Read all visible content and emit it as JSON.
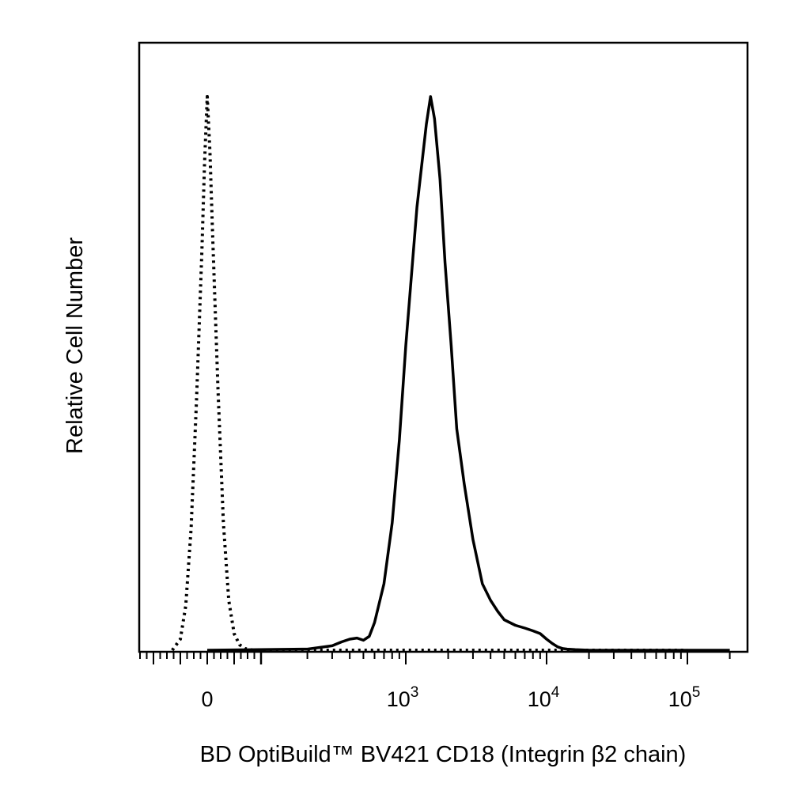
{
  "chart_data": {
    "type": "line",
    "xlabel": "BD OptiBuild™ BV421 CD18 (Integrin β2 chain)",
    "ylabel": "Relative Cell Number",
    "x_scale": "biexponential",
    "xlim": [
      -200,
      200000
    ],
    "ylim": [
      0,
      100
    ],
    "grid": false,
    "legend": "none",
    "x_tick_labels": [
      {
        "value": 0,
        "base": "0",
        "exp": ""
      },
      {
        "value": 1000,
        "base": "10",
        "exp": "3"
      },
      {
        "value": 10000,
        "base": "10",
        "exp": "4"
      },
      {
        "value": 100000,
        "base": "10",
        "exp": "5"
      }
    ],
    "series": [
      {
        "style": "dotted",
        "color": "#000000",
        "x": [
          -130,
          -100,
          -80,
          -60,
          -40,
          -20,
          -10,
          0,
          10,
          20,
          40,
          60,
          80,
          100,
          120,
          140,
          170,
          200,
          300,
          1000,
          10000,
          100000
        ],
        "y": [
          0,
          2,
          8,
          22,
          45,
          72,
          88,
          100,
          90,
          75,
          47,
          23,
          9,
          3,
          1,
          0.3,
          0,
          0,
          0,
          0,
          0,
          0
        ]
      },
      {
        "style": "solid",
        "color": "#000000",
        "x": [
          0,
          200,
          300,
          350,
          400,
          450,
          500,
          550,
          600,
          700,
          800,
          900,
          1000,
          1200,
          1400,
          1500,
          1600,
          1750,
          1900,
          2100,
          2300,
          2600,
          3000,
          3500,
          4000,
          4500,
          5000,
          6000,
          7000,
          8000,
          9000,
          10000,
          11000,
          12000,
          13000,
          14000,
          16000,
          20000,
          30000,
          60000,
          100000,
          200000
        ],
        "y": [
          0,
          0.2,
          0.8,
          1.5,
          2.0,
          2.2,
          1.8,
          2.5,
          5,
          12,
          23,
          38,
          55,
          80,
          95,
          100,
          96,
          85,
          70,
          55,
          40,
          30,
          20,
          12,
          9,
          7,
          5.5,
          4.5,
          4,
          3.5,
          3,
          2,
          1.2,
          0.6,
          0.3,
          0.2,
          0.1,
          0,
          0,
          0,
          0,
          0
        ]
      }
    ]
  }
}
